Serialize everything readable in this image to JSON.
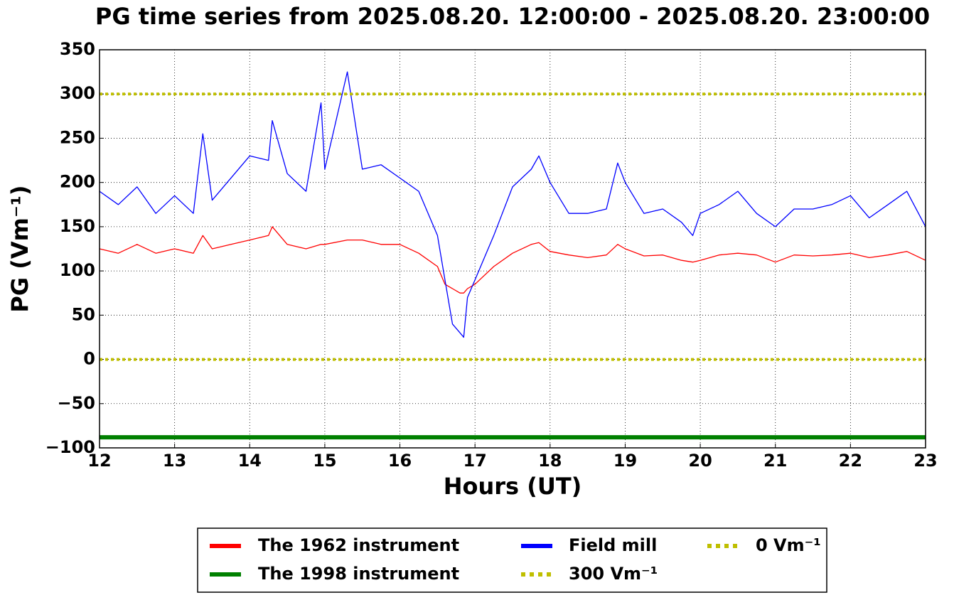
{
  "chart_data": {
    "type": "line",
    "title": "PG time series from 2025.08.20. 12:00:00 - 2025.08.20. 23:00:00",
    "xlabel": "Hours (UT)",
    "ylabel": "PG (Vm⁻¹)",
    "xlim": [
      12,
      23
    ],
    "xticks": [
      12,
      13,
      14,
      15,
      16,
      17,
      18,
      19,
      20,
      21,
      22,
      23
    ],
    "ylim": [
      -100,
      350
    ],
    "yticks": [
      {
        "value": -100,
        "label": "−100"
      },
      {
        "value": -50,
        "label": "−50"
      },
      0,
      50,
      100,
      150,
      200,
      250,
      300,
      350
    ],
    "grid": true,
    "legend": "below",
    "x": [
      12,
      12.25,
      12.5,
      12.75,
      13,
      13.25,
      13.375,
      13.5,
      13.75,
      14,
      14.25,
      14.3,
      14.5,
      14.75,
      14.95,
      15,
      15.3,
      15.5,
      15.75,
      16,
      16.25,
      16.5,
      16.6,
      16.7,
      16.8,
      16.85,
      16.9,
      17,
      17.25,
      17.5,
      17.75,
      17.85,
      18,
      18.25,
      18.5,
      18.75,
      18.9,
      19,
      19.25,
      19.5,
      19.75,
      19.9,
      20,
      20.25,
      20.5,
      20.75,
      21,
      21.25,
      21.5,
      21.75,
      22,
      22.25,
      22.5,
      22.75,
      23
    ],
    "series": [
      {
        "name": "The 1962 instrument",
        "color": "#ff0000",
        "values": [
          125,
          120,
          130,
          120,
          125,
          120,
          140,
          125,
          130,
          135,
          140,
          150,
          130,
          125,
          130,
          130,
          135,
          135,
          130,
          130,
          120,
          105,
          85,
          80,
          75,
          75,
          80,
          85,
          105,
          120,
          130,
          132,
          122,
          118,
          115,
          118,
          130,
          125,
          117,
          118,
          112,
          110,
          112,
          118,
          120,
          118,
          110,
          118,
          117,
          118,
          120,
          115,
          118,
          122,
          112
        ]
      },
      {
        "name": "The 1998 instrument",
        "color": "#008000",
        "x": [
          12,
          23
        ],
        "values": [
          -88,
          -88
        ]
      },
      {
        "name": "Field mill",
        "color": "#0000ff",
        "values": [
          190,
          175,
          195,
          165,
          185,
          165,
          255,
          180,
          205,
          230,
          225,
          270,
          210,
          190,
          290,
          215,
          325,
          215,
          220,
          205,
          190,
          140,
          90,
          40,
          30,
          25,
          70,
          90,
          140,
          195,
          215,
          230,
          200,
          165,
          165,
          170,
          222,
          200,
          165,
          170,
          155,
          140,
          165,
          175,
          190,
          165,
          150,
          170,
          170,
          175,
          185,
          160,
          175,
          190,
          150
        ]
      },
      {
        "name": "300 Vm⁻¹",
        "color": "#bfbf00",
        "dashed": true,
        "x": [
          12,
          23
        ],
        "values": [
          300,
          300
        ]
      },
      {
        "name": "0 Vm⁻¹",
        "color": "#bfbf00",
        "dashed": true,
        "x": [
          12,
          23
        ],
        "values": [
          0,
          0
        ]
      }
    ]
  }
}
